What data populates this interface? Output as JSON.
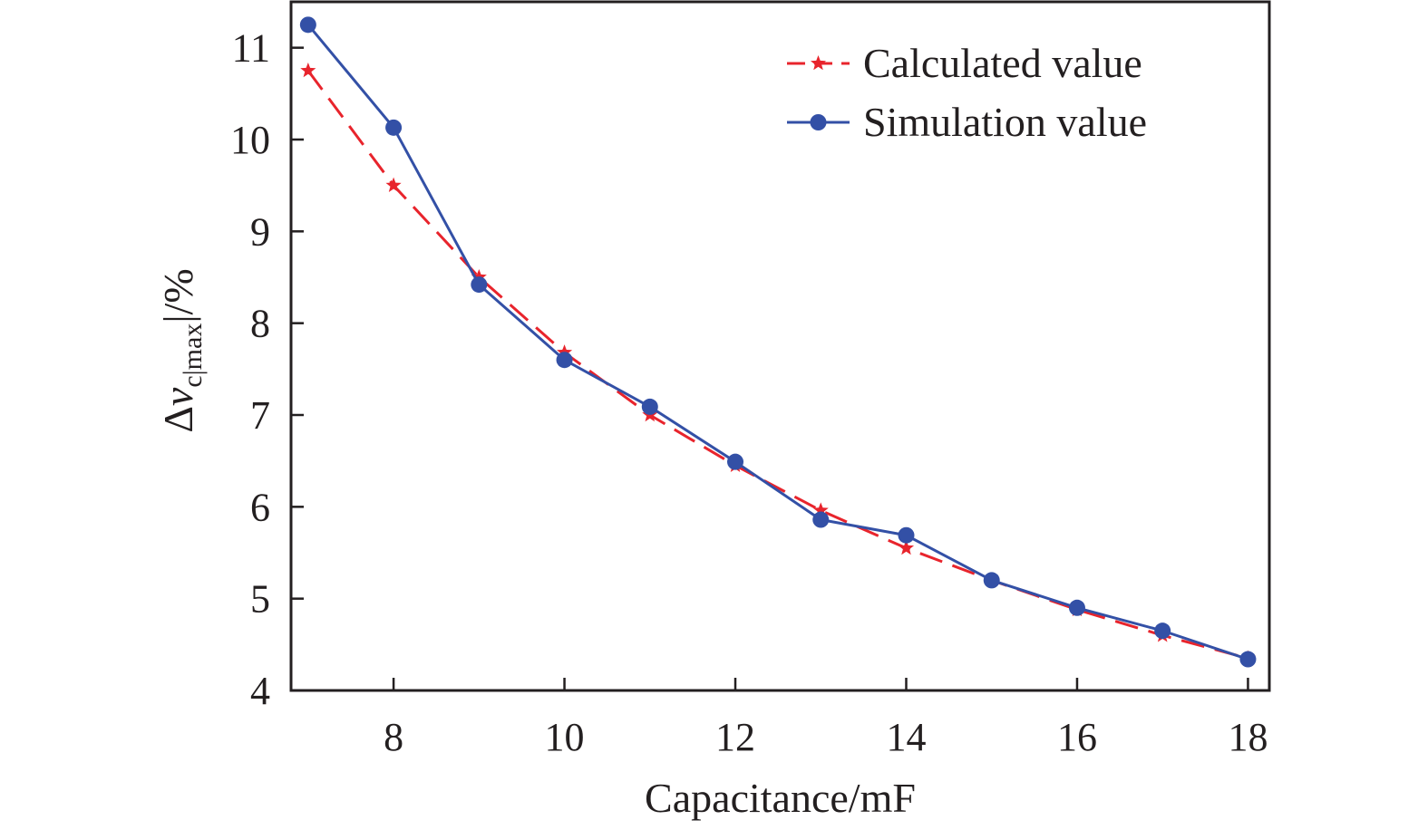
{
  "chart_data": {
    "type": "line",
    "xlabel": "Capacitance/mF",
    "ylabel": {
      "delta": "Δ",
      "var": "v",
      "sub": "c|max",
      "suffix": "|/%"
    },
    "xlim": [
      6.8,
      18.25
    ],
    "ylim": [
      4,
      11.5
    ],
    "xticks": [
      8,
      10,
      12,
      14,
      16,
      18
    ],
    "yticks": [
      4,
      5,
      6,
      7,
      8,
      9,
      10,
      11
    ],
    "grid": false,
    "legend_position": "top-right",
    "series": [
      {
        "name": "Calculated value",
        "color": "#e8242c",
        "line_style": "dashed",
        "marker": "star",
        "x": [
          7,
          8,
          9,
          10,
          11,
          12,
          13,
          14,
          15,
          16,
          17,
          18
        ],
        "y": [
          10.75,
          9.5,
          8.5,
          7.68,
          7.0,
          6.45,
          5.96,
          5.55,
          5.2,
          4.88,
          4.6,
          4.35
        ]
      },
      {
        "name": "Simulation value",
        "color": "#3350a6",
        "line_style": "solid",
        "marker": "circle",
        "x": [
          7,
          8,
          9,
          10,
          11,
          12,
          13,
          14,
          15,
          16,
          17,
          18
        ],
        "y": [
          11.25,
          10.13,
          8.42,
          7.6,
          7.09,
          6.49,
          5.86,
          5.69,
          5.2,
          4.9,
          4.65,
          4.34
        ]
      }
    ]
  }
}
